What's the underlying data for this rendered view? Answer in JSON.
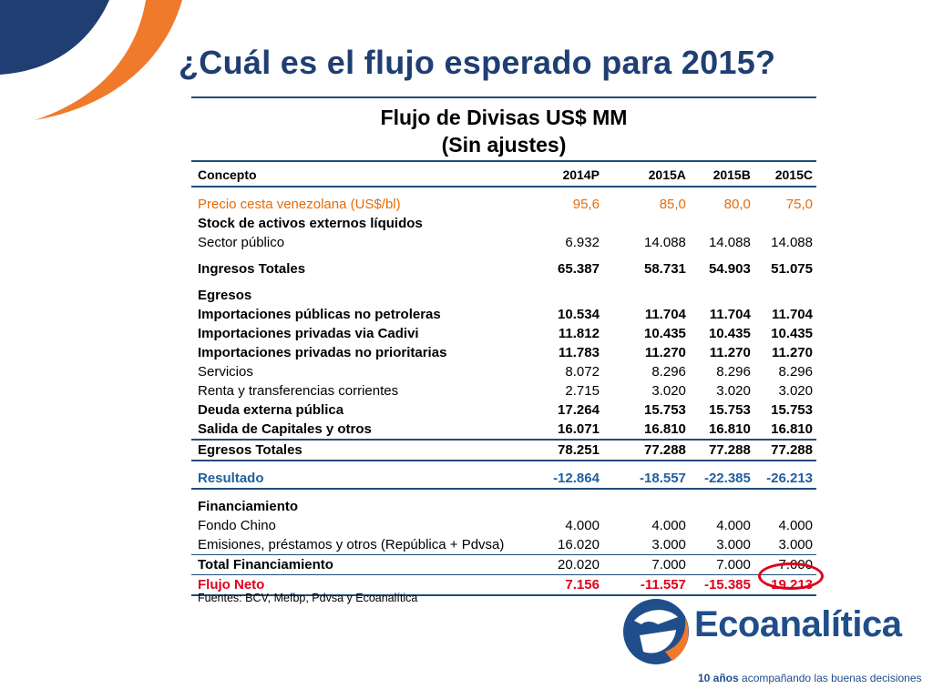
{
  "slide": {
    "title": "¿Cuál es el flujo esperado para 2015?"
  },
  "table": {
    "title_line1": "Flujo de Divisas US$ MM",
    "title_line2": "(Sin ajustes)",
    "headers": [
      "Concepto",
      "2014P",
      "2015A",
      "2015B",
      "2015C"
    ],
    "rows": [
      {
        "label": "Precio cesta venezolana (US$/bl)",
        "values": [
          "95,6",
          "85,0",
          "80,0",
          "75,0"
        ]
      },
      {
        "label": "Stock de activos externos líquidos",
        "values": [
          "",
          "",
          "",
          ""
        ]
      },
      {
        "label": "Sector público",
        "values": [
          "6.932",
          "14.088",
          "14.088",
          "14.088"
        ]
      },
      {
        "label": "Ingresos Totales",
        "values": [
          "65.387",
          "58.731",
          "54.903",
          "51.075"
        ]
      },
      {
        "label": "Egresos",
        "values": [
          "",
          "",
          "",
          ""
        ]
      },
      {
        "label": "Importaciones públicas no petroleras",
        "values": [
          "10.534",
          "11.704",
          "11.704",
          "11.704"
        ]
      },
      {
        "label": "Importaciones privadas via Cadivi",
        "values": [
          "11.812",
          "10.435",
          "10.435",
          "10.435"
        ]
      },
      {
        "label": "Importaciones privadas no prioritarias",
        "values": [
          "11.783",
          "11.270",
          "11.270",
          "11.270"
        ]
      },
      {
        "label": "Servicios",
        "values": [
          "8.072",
          "8.296",
          "8.296",
          "8.296"
        ]
      },
      {
        "label": "Renta y transferencias corrientes",
        "values": [
          "2.715",
          "3.020",
          "3.020",
          "3.020"
        ]
      },
      {
        "label": "Deuda externa pública",
        "values": [
          "17.264",
          "15.753",
          "15.753",
          "15.753"
        ]
      },
      {
        "label": "Salida de Capitales y otros",
        "values": [
          "16.071",
          "16.810",
          "16.810",
          "16.810"
        ]
      },
      {
        "label": "Egresos Totales",
        "values": [
          "78.251",
          "77.288",
          "77.288",
          "77.288"
        ]
      },
      {
        "label": "Resultado",
        "values": [
          "-12.864",
          "-18.557",
          "-22.385",
          "-26.213"
        ]
      },
      {
        "label": "Financiamiento",
        "values": [
          "",
          "",
          "",
          ""
        ]
      },
      {
        "label": "Fondo Chino",
        "values": [
          "4.000",
          "4.000",
          "4.000",
          "4.000"
        ]
      },
      {
        "label": "Emisiones, préstamos y otros (República + Pdvsa)",
        "values": [
          "16.020",
          "3.000",
          "3.000",
          "3.000"
        ]
      },
      {
        "label": "Total Financiamiento",
        "values": [
          "20.020",
          "7.000",
          "7.000",
          "7.000"
        ]
      },
      {
        "label": "Flujo Neto",
        "values": [
          "7.156",
          "-11.557",
          "-15.385",
          "-19.213"
        ]
      }
    ],
    "footnote": "Fuentes: BCV, Mefbp, Pdvsa y Ecoanalítica"
  },
  "brand": {
    "name": "Ecoanalítica",
    "tagline_bold": "10 años",
    "tagline_rest": " acompañando las buenas decisiones",
    "primary_color": "#1f4e8a",
    "accent_color": "#f07a2b",
    "highlight_color": "#e0001a"
  }
}
